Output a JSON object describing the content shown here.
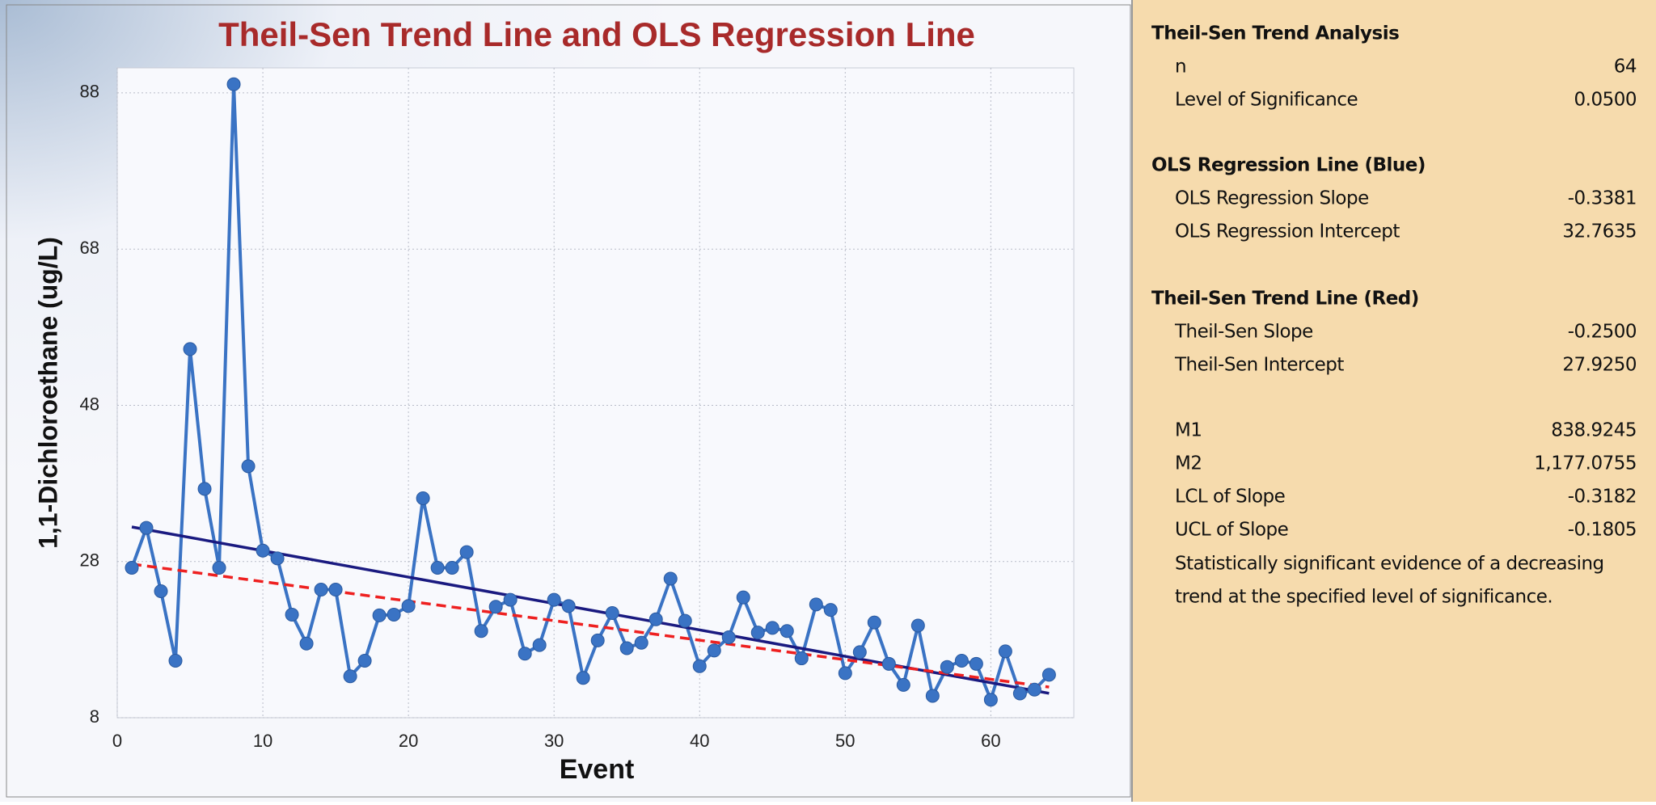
{
  "chart_data": {
    "type": "line",
    "title": "Theil-Sen Trend Line and OLS Regression Line",
    "xlabel": "Event",
    "ylabel": "1,1-Dichloroethane (ug/L)",
    "x": [
      1,
      2,
      3,
      4,
      5,
      6,
      7,
      8,
      9,
      10,
      11,
      12,
      13,
      14,
      15,
      16,
      17,
      18,
      19,
      20,
      21,
      22,
      23,
      24,
      25,
      26,
      27,
      28,
      29,
      30,
      31,
      32,
      33,
      34,
      35,
      36,
      37,
      38,
      39,
      40,
      41,
      42,
      43,
      44,
      45,
      46,
      47,
      48,
      49,
      50,
      51,
      52,
      53,
      54,
      55,
      56,
      57,
      58,
      59,
      60,
      61,
      62,
      63,
      64
    ],
    "series": [
      {
        "name": "1,1-Dichloroethane",
        "color": "#3a73c4",
        "values": [
          27.2,
          32.3,
          24.2,
          15.3,
          55.2,
          37.3,
          27.2,
          89.1,
          40.2,
          29.4,
          28.4,
          21.2,
          17.5,
          24.4,
          24.4,
          13.3,
          15.3,
          21.1,
          21.2,
          22.3,
          36.1,
          27.2,
          27.2,
          29.2,
          19.1,
          22.2,
          23.1,
          16.2,
          17.3,
          23.1,
          22.3,
          13.1,
          17.9,
          21.4,
          16.9,
          17.6,
          20.6,
          25.8,
          20.4,
          14.6,
          16.6,
          18.3,
          23.4,
          18.9,
          19.5,
          19.1,
          15.6,
          22.5,
          21.8,
          13.7,
          16.4,
          20.2,
          14.9,
          12.2,
          19.8,
          10.8,
          14.5,
          15.3,
          14.9,
          10.3,
          16.5,
          11.1,
          11.6,
          13.5
        ]
      }
    ],
    "trend_lines": [
      {
        "name": "OLS Regression Line",
        "color": "#1a1a80",
        "dash": false,
        "x": [
          1,
          64
        ],
        "values": [
          32.4254,
          11.1251
        ]
      },
      {
        "name": "Theil-Sen Trend Line",
        "color": "#ee2020",
        "dash": true,
        "x": [
          1,
          64
        ],
        "values": [
          27.675,
          11.925
        ]
      }
    ],
    "xlim": [
      0,
      65.7
    ],
    "xticks": [
      0,
      10,
      20,
      30,
      40,
      50,
      60
    ],
    "ylim": [
      8,
      91.2
    ],
    "yticks": [
      8,
      28,
      48,
      68,
      88
    ],
    "grid": true
  },
  "panel": {
    "sections": [
      {
        "title": "Theil-Sen Trend Analysis",
        "rows": [
          {
            "label": "n",
            "value": "64"
          },
          {
            "label": "Level of Significance",
            "value": "0.0500"
          }
        ]
      },
      {
        "title": "OLS Regression Line (Blue)",
        "rows": [
          {
            "label": "OLS Regression Slope",
            "value": "-0.3381"
          },
          {
            "label": "OLS Regression Intercept",
            "value": "32.7635"
          }
        ]
      },
      {
        "title": "Theil-Sen Trend Line (Red)",
        "rows": [
          {
            "label": "Theil-Sen Slope",
            "value": "-0.2500"
          },
          {
            "label": "Theil-Sen Intercept",
            "value": "27.9250"
          }
        ]
      },
      {
        "rows": [
          {
            "label": "M1",
            "value": "838.9245"
          },
          {
            "label": "M2",
            "value": "1,177.0755"
          },
          {
            "label": "LCL of Slope",
            "value": "-0.3182"
          },
          {
            "label": "UCL of Slope",
            "value": "-0.1805"
          }
        ]
      }
    ],
    "conclusion": [
      "Statistically significant evidence of a decreasing",
      "trend at the specified level of significance."
    ]
  }
}
